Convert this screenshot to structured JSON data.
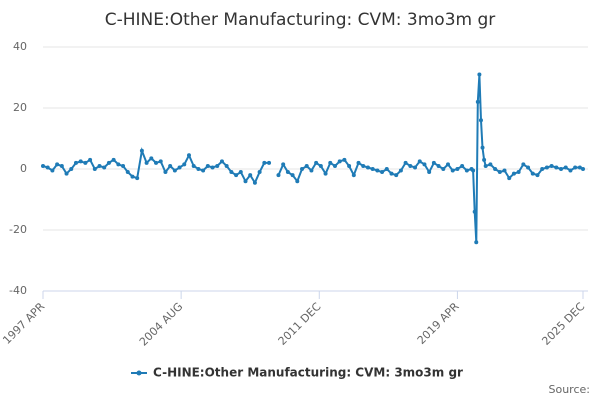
{
  "chart_data": {
    "type": "line",
    "title": "C-HINE:Other Manufacturing: CVM: 3mo3m gr",
    "source": "Source:",
    "x": [
      "1997-04",
      "1997-07",
      "1997-10",
      "1998-01",
      "1998-04",
      "1998-07",
      "1998-10",
      "1999-01",
      "1999-04",
      "1999-07",
      "1999-10",
      "2000-01",
      "2000-04",
      "2000-07",
      "2000-10",
      "2001-01",
      "2001-04",
      "2001-07",
      "2001-10",
      "2002-01",
      "2002-04",
      "2002-07",
      "2002-10",
      "2003-01",
      "2003-04",
      "2003-07",
      "2003-10",
      "2004-01",
      "2004-04",
      "2004-07",
      "2004-10",
      "2005-01",
      "2005-04",
      "2005-07",
      "2005-10",
      "2006-01",
      "2006-04",
      "2006-07",
      "2006-10",
      "2007-01",
      "2007-04",
      "2007-07",
      "2007-10",
      "2008-01",
      "2008-04",
      "2008-07",
      "2008-10",
      "2009-01",
      "2009-04",
      "2009-07",
      "2009-10",
      "2010-01",
      "2010-04",
      "2010-07",
      "2010-10",
      "2011-01",
      "2011-04",
      "2011-07",
      "2011-10",
      "2012-01",
      "2012-04",
      "2012-07",
      "2012-10",
      "2013-01",
      "2013-04",
      "2013-07",
      "2013-10",
      "2014-01",
      "2014-04",
      "2014-07",
      "2014-10",
      "2015-01",
      "2015-04",
      "2015-07",
      "2015-10",
      "2016-01",
      "2016-04",
      "2016-07",
      "2016-10",
      "2017-01",
      "2017-04",
      "2017-07",
      "2017-10",
      "2018-01",
      "2018-04",
      "2018-07",
      "2018-10",
      "2019-01",
      "2019-04",
      "2019-07",
      "2019-10",
      "2020-01",
      "2020-02",
      "2020-03",
      "2020-04",
      "2020-05",
      "2020-06",
      "2020-07",
      "2020-08",
      "2020-09",
      "2020-10",
      "2021-01",
      "2021-04",
      "2021-07",
      "2021-10",
      "2022-01",
      "2022-04",
      "2022-07",
      "2022-10",
      "2023-01",
      "2023-04",
      "2023-07",
      "2023-10",
      "2024-01",
      "2024-04",
      "2024-07",
      "2024-10",
      "2025-01",
      "2025-04",
      "2025-07",
      "2025-10",
      "2025-12"
    ],
    "series": [
      {
        "name": "C-HINE:Other Manufacturing: CVM: 3mo3m gr",
        "color": "#1f7bb6",
        "values": [
          1,
          0.5,
          -0.5,
          1.5,
          1,
          -1.5,
          0,
          2,
          2.5,
          2,
          3,
          0,
          1,
          0.5,
          2,
          3,
          1.5,
          1,
          -1,
          -2.5,
          -3,
          6,
          2,
          3.5,
          2,
          2.5,
          -1,
          1,
          -0.5,
          0.5,
          1.5,
          4.5,
          1,
          0,
          -0.5,
          1,
          0.5,
          1,
          2.5,
          1,
          -1,
          -2,
          -1,
          -4,
          -2,
          -4.5,
          -1,
          2,
          2,
          null,
          -2,
          1.5,
          -1,
          -2,
          -4,
          0,
          1,
          -0.5,
          2,
          1,
          -1.5,
          2,
          1,
          2.5,
          3,
          1,
          -2,
          2,
          1,
          0.5,
          0,
          -0.5,
          -1,
          0,
          -1.5,
          -2,
          -0.5,
          2,
          1,
          0.5,
          2.5,
          1.5,
          -1,
          2,
          1,
          0,
          1.5,
          -0.5,
          0,
          1,
          -0.5,
          0,
          -0.5,
          -14,
          -24,
          22,
          31,
          16,
          7,
          3,
          1,
          1.5,
          0,
          -1,
          -0.5,
          -3,
          -1.5,
          -1,
          1.5,
          0.5,
          -1.5,
          -2,
          0,
          0.5,
          1,
          0.5,
          0,
          0.5,
          -0.5,
          0.5,
          0.5,
          0
        ]
      }
    ],
    "xlim": [
      "1997-04",
      "2025-12"
    ],
    "xticks": [
      {
        "value": "1997-04",
        "label": "1997 APR"
      },
      {
        "value": "2004-08",
        "label": "2004 AUG"
      },
      {
        "value": "2011-12",
        "label": "2011 DEC"
      },
      {
        "value": "2019-04",
        "label": "2019 APR"
      },
      {
        "value": "2025-12",
        "label": "2025 DEC"
      }
    ],
    "ylim": [
      -40,
      40
    ],
    "yticks": [
      -40,
      -20,
      0,
      20,
      40
    ],
    "grid": true
  }
}
